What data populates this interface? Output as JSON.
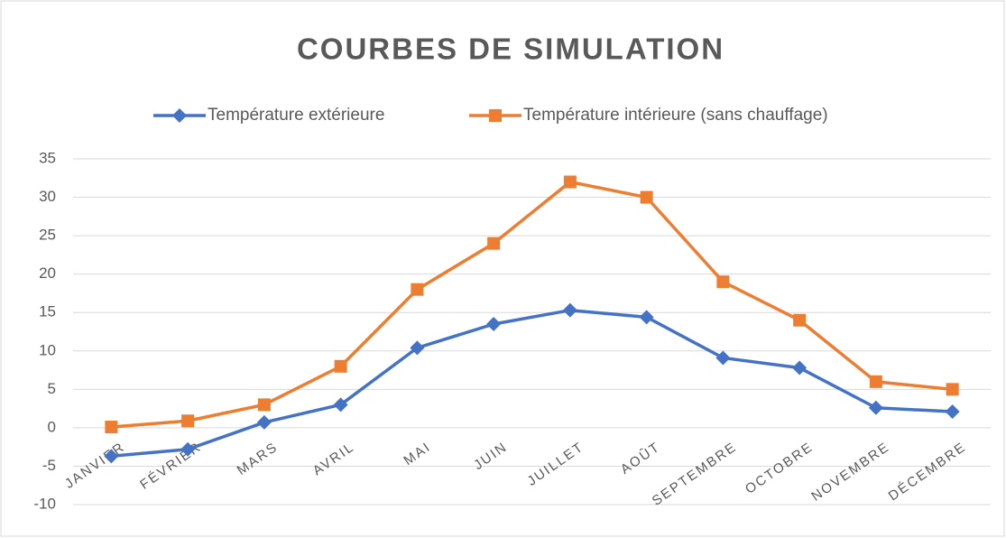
{
  "chart_data": {
    "type": "line",
    "title": "COURBES DE SIMULATION",
    "categories": [
      "JANVIER",
      "FÉVRIER",
      "MARS",
      "AVRIL",
      "MAI",
      "JUIN",
      "JUILLET",
      "AOÛT",
      "SEPTEMBRE",
      "OCTOBRE",
      "NOVEMBRE",
      "DÉCEMBRE"
    ],
    "series": [
      {
        "name": "Température extérieure",
        "color": "#4472c4",
        "marker": "diamond",
        "values": [
          -3.7,
          -2.8,
          0.7,
          3.0,
          10.4,
          13.5,
          15.3,
          14.4,
          9.1,
          7.8,
          2.6,
          2.1
        ]
      },
      {
        "name": "Température intérieure (sans chauffage)",
        "color": "#ed7d31",
        "marker": "square",
        "values": [
          0.1,
          0.9,
          3.0,
          8.0,
          18.0,
          24.0,
          32.0,
          30.0,
          19.0,
          14.0,
          6.0,
          5.0
        ]
      }
    ],
    "ylim": [
      -10,
      35
    ],
    "yticks": [
      -10,
      -5,
      0,
      5,
      10,
      15,
      20,
      25,
      30,
      35
    ],
    "grid": true,
    "legend": "top"
  }
}
